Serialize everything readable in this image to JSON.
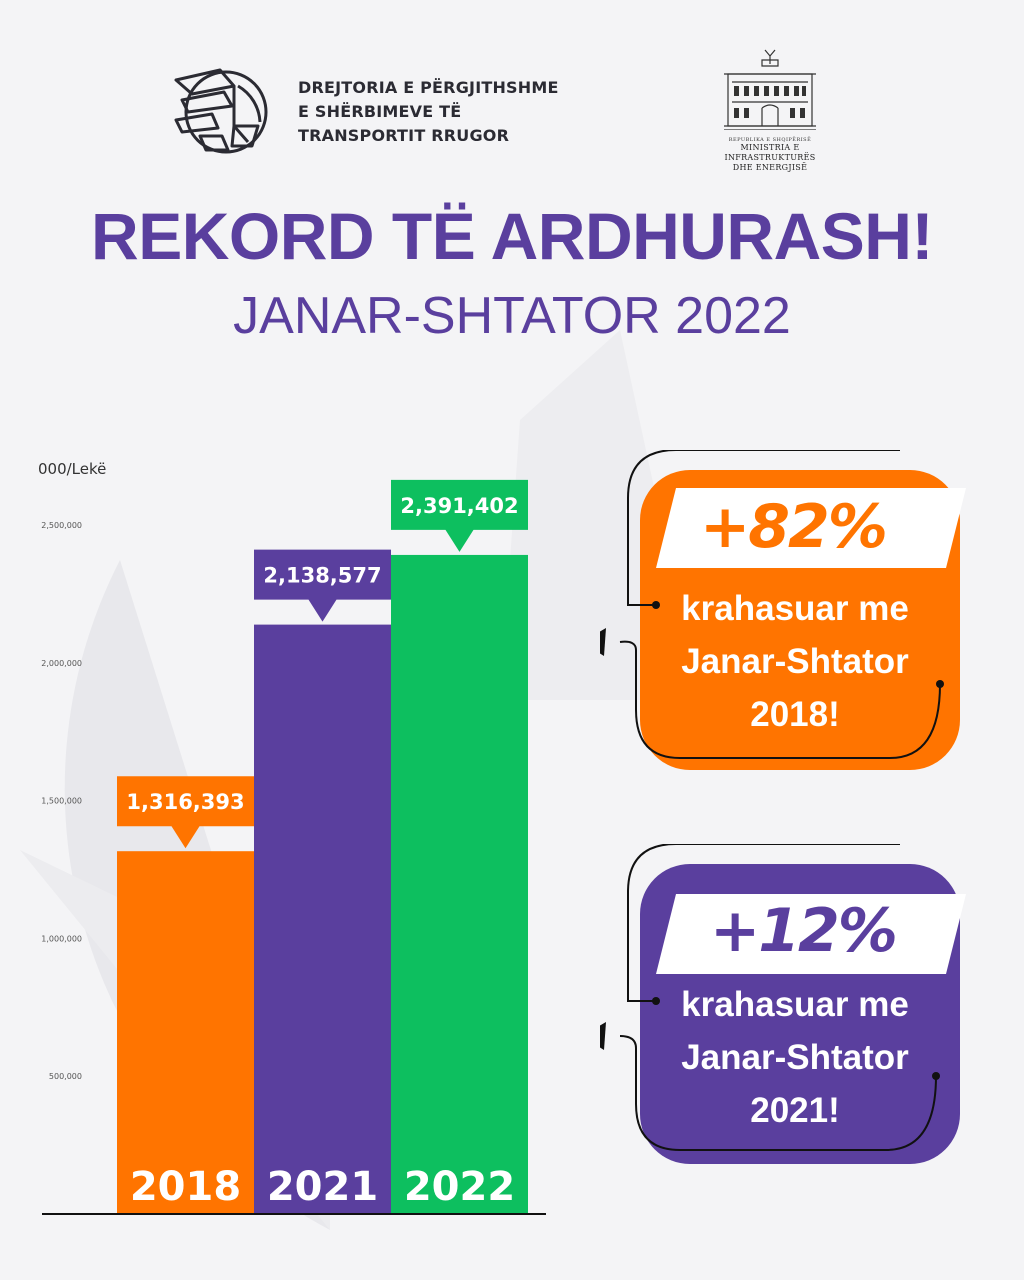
{
  "header": {
    "org_lines": [
      "DREJTORIA E PËRGJITHSHME",
      "E SHËRBIMEVE TË",
      "TRANSPORTIT RRUGOR"
    ],
    "ministry_small": "REPUBLIKA E SHQIPËRISË",
    "ministry_lines": [
      "MINISTRIA E INFRASTRUKTURËS",
      "DHE ENERGJISË"
    ]
  },
  "title": "REKORD TË ARDHURASH!",
  "subtitle": "JANAR-SHTATOR 2022",
  "colors": {
    "orange": "#ff7400",
    "purple": "#5a3f9e",
    "green": "#0dbf5f",
    "title": "#5a3f9e"
  },
  "chart_data": {
    "type": "bar",
    "unit_label": "000/Lekë",
    "categories": [
      "2018",
      "2021",
      "2022"
    ],
    "values": [
      1316393,
      2138577,
      2391402
    ],
    "value_labels": [
      "1,316,393",
      "2,138,577",
      "2,391,402"
    ],
    "bar_colors": [
      "#ff7400",
      "#5a3f9e",
      "#0dbf5f"
    ],
    "yticks": [
      500000,
      1000000,
      1500000,
      2000000,
      2500000
    ],
    "ytick_labels": [
      "500,000",
      "1,000,000",
      "1,500,000",
      "2,000,000",
      "2,500,000"
    ],
    "ylim": [
      0,
      2500000
    ]
  },
  "callouts": [
    {
      "percent": "+82%",
      "lines": [
        "krahasuar me",
        "Janar-Shtator",
        "2018!"
      ],
      "color": "#ff7400"
    },
    {
      "percent": "+12%",
      "lines": [
        "krahasuar me",
        "Janar-Shtator",
        "2021!"
      ],
      "color": "#5a3f9e"
    }
  ]
}
